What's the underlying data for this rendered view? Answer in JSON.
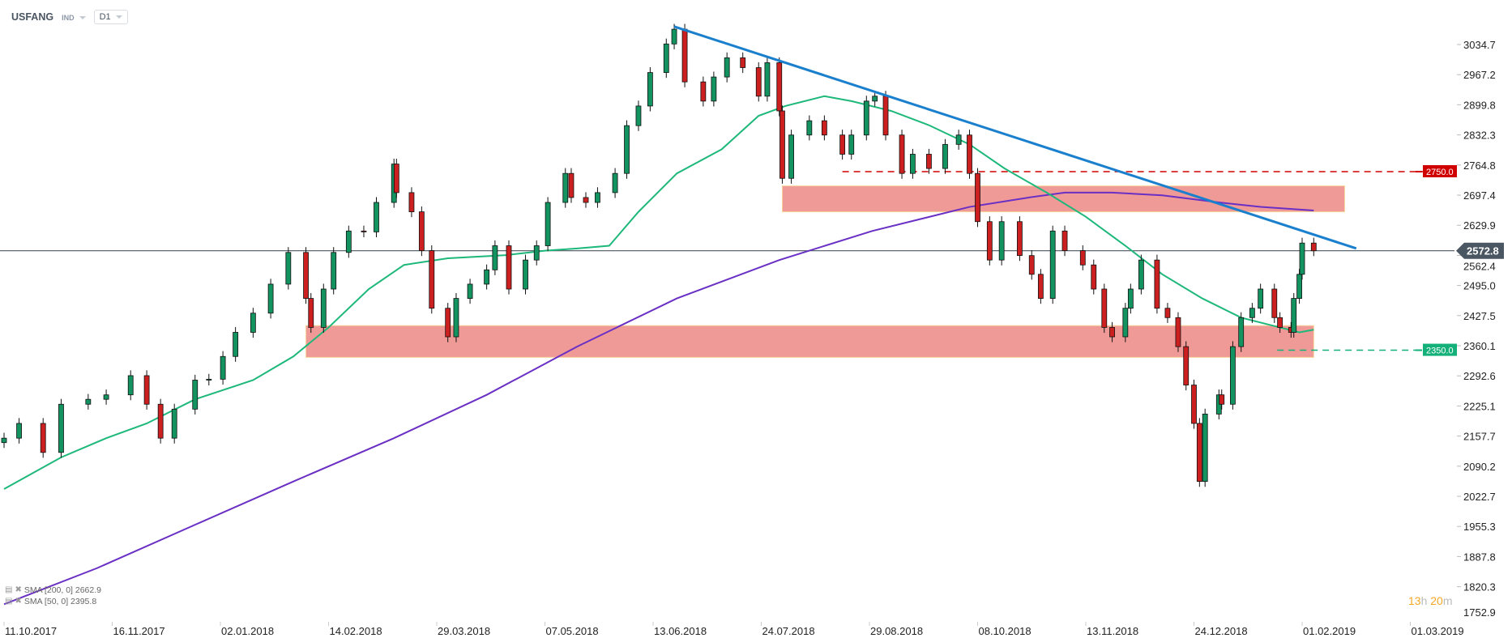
{
  "header": {
    "symbol": "USFANG",
    "type": "IND",
    "timeframe": "D1"
  },
  "legend": [
    {
      "label": "SMA [200,  0] 2662.9",
      "color": "#6a2fc4"
    },
    {
      "label": "SMA [50,  0] 2395.8",
      "color": "#1db87a"
    }
  ],
  "timer": {
    "hours": "13",
    "h": "h",
    "minutes": "20",
    "m": "m"
  },
  "colors": {
    "up": "#12935f",
    "down": "#cc1f1f",
    "sma50": "#1db87a",
    "sma200": "#6a2fc4",
    "trendline": "#1a7fcc",
    "zone": "#ef9a97",
    "price_line": "#4a5661",
    "level_red": "#d10000",
    "level_green": "#13b07a"
  },
  "chart_data": {
    "type": "candlestick",
    "title": "",
    "ylim": [
      1752.9,
      3102
    ],
    "y_ticks": [
      "3034.7",
      "2967.2",
      "2899.8",
      "2832.3",
      "2764.8",
      "2697.4",
      "2629.9",
      "2562.4",
      "2495.0",
      "2427.5",
      "2360.1",
      "2292.6",
      "2225.1",
      "2157.7",
      "2090.2",
      "2022.7",
      "1955.3",
      "1887.8",
      "1820.3",
      "1752.9"
    ],
    "x_ticks": [
      "11.10.2017",
      "16.11.2017",
      "02.01.2018",
      "14.02.2018",
      "29.03.2018",
      "07.05.2018",
      "13.06.2018",
      "24.07.2018",
      "29.08.2018",
      "08.10.2018",
      "13.11.2018",
      "24.12.2018",
      "01.02.2019",
      "01.03.2019"
    ],
    "closes": [
      [
        "2017-10-11",
        2153
      ],
      [
        "2017-10-16",
        2186
      ],
      [
        "2017-10-24",
        2121
      ],
      [
        "2017-10-30",
        2229
      ],
      [
        "2017-11-08",
        2240
      ],
      [
        "2017-11-14",
        2250
      ],
      [
        "2017-11-24",
        2293
      ],
      [
        "2017-12-01",
        2229
      ],
      [
        "2017-12-07",
        2153
      ],
      [
        "2017-12-13",
        2218
      ],
      [
        "2017-12-22",
        2283
      ],
      [
        "2017-12-28",
        2285
      ],
      [
        "2018-01-03",
        2336
      ],
      [
        "2018-01-08",
        2390
      ],
      [
        "2018-01-15",
        2433
      ],
      [
        "2018-01-22",
        2498
      ],
      [
        "2018-01-29",
        2569
      ],
      [
        "2018-02-05",
        2466
      ],
      [
        "2018-02-07",
        2401
      ],
      [
        "2018-02-12",
        2487
      ],
      [
        "2018-02-16",
        2569
      ],
      [
        "2018-02-22",
        2617
      ],
      [
        "2018-02-28",
        2615
      ],
      [
        "2018-03-05",
        2681
      ],
      [
        "2018-03-12",
        2767
      ],
      [
        "2018-03-13",
        2703
      ],
      [
        "2018-03-19",
        2660
      ],
      [
        "2018-03-23",
        2573
      ],
      [
        "2018-03-27",
        2444
      ],
      [
        "2018-04-02",
        2380
      ],
      [
        "2018-04-05",
        2466
      ],
      [
        "2018-04-10",
        2498
      ],
      [
        "2018-04-16",
        2530
      ],
      [
        "2018-04-19",
        2584
      ],
      [
        "2018-04-24",
        2487
      ],
      [
        "2018-04-30",
        2552
      ],
      [
        "2018-05-04",
        2584
      ],
      [
        "2018-05-08",
        2681
      ],
      [
        "2018-05-14",
        2746
      ],
      [
        "2018-05-16",
        2692
      ],
      [
        "2018-05-21",
        2681
      ],
      [
        "2018-05-25",
        2703
      ],
      [
        "2018-05-31",
        2746
      ],
      [
        "2018-06-04",
        2853
      ],
      [
        "2018-06-08",
        2897
      ],
      [
        "2018-06-12",
        2972
      ],
      [
        "2018-06-18",
        3036
      ],
      [
        "2018-06-21",
        3069
      ],
      [
        "2018-06-25",
        2951
      ],
      [
        "2018-07-02",
        2908
      ],
      [
        "2018-07-06",
        2962
      ],
      [
        "2018-07-11",
        3005
      ],
      [
        "2018-07-17",
        2983
      ],
      [
        "2018-07-23",
        2919
      ],
      [
        "2018-07-26",
        2994
      ],
      [
        "2018-07-30",
        2886
      ],
      [
        "2018-07-31",
        2735
      ],
      [
        "2018-08-03",
        2832
      ],
      [
        "2018-08-09",
        2864
      ],
      [
        "2018-08-14",
        2832
      ],
      [
        "2018-08-20",
        2789
      ],
      [
        "2018-08-23",
        2832
      ],
      [
        "2018-08-28",
        2908
      ],
      [
        "2018-08-31",
        2919
      ],
      [
        "2018-09-04",
        2832
      ],
      [
        "2018-09-10",
        2746
      ],
      [
        "2018-09-14",
        2789
      ],
      [
        "2018-09-20",
        2757
      ],
      [
        "2018-09-26",
        2811
      ],
      [
        "2018-10-01",
        2832
      ],
      [
        "2018-10-05",
        2746
      ],
      [
        "2018-10-08",
        2638
      ],
      [
        "2018-10-12",
        2552
      ],
      [
        "2018-10-16",
        2638
      ],
      [
        "2018-10-22",
        2562
      ],
      [
        "2018-10-26",
        2520
      ],
      [
        "2018-10-29",
        2466
      ],
      [
        "2018-11-02",
        2617
      ],
      [
        "2018-11-06",
        2573
      ],
      [
        "2018-11-12",
        2541
      ],
      [
        "2018-11-16",
        2487
      ],
      [
        "2018-11-20",
        2401
      ],
      [
        "2018-11-23",
        2380
      ],
      [
        "2018-11-28",
        2444
      ],
      [
        "2018-11-30",
        2487
      ],
      [
        "2018-12-04",
        2552
      ],
      [
        "2018-12-10",
        2444
      ],
      [
        "2018-12-14",
        2423
      ],
      [
        "2018-12-18",
        2358
      ],
      [
        "2018-12-21",
        2272
      ],
      [
        "2018-12-24",
        2186
      ],
      [
        "2018-12-26",
        2056
      ],
      [
        "2018-12-28",
        2207
      ],
      [
        "2019-01-02",
        2250
      ],
      [
        "2019-01-03",
        2229
      ],
      [
        "2019-01-07",
        2358
      ],
      [
        "2019-01-10",
        2423
      ],
      [
        "2019-01-14",
        2444
      ],
      [
        "2019-01-17",
        2487
      ],
      [
        "2019-01-22",
        2423
      ],
      [
        "2019-01-24",
        2401
      ],
      [
        "2019-01-28",
        2390
      ],
      [
        "2019-01-29",
        2466
      ],
      [
        "2019-01-31",
        2520
      ],
      [
        "2019-02-01",
        2590
      ],
      [
        "2019-02-04",
        2572.8
      ]
    ],
    "sma50": [
      [
        "2017-10-11",
        2039
      ],
      [
        "2017-10-30",
        2110
      ],
      [
        "2017-11-14",
        2153
      ],
      [
        "2017-12-01",
        2186
      ],
      [
        "2017-12-22",
        2240
      ],
      [
        "2018-01-15",
        2283
      ],
      [
        "2018-01-31",
        2336
      ],
      [
        "2018-02-14",
        2401
      ],
      [
        "2018-03-02",
        2487
      ],
      [
        "2018-03-16",
        2541
      ],
      [
        "2018-04-02",
        2556
      ],
      [
        "2018-04-23",
        2563
      ],
      [
        "2018-05-07",
        2573
      ],
      [
        "2018-05-18",
        2578
      ],
      [
        "2018-05-29",
        2584
      ],
      [
        "2018-06-08",
        2660
      ],
      [
        "2018-06-22",
        2746
      ],
      [
        "2018-07-09",
        2800
      ],
      [
        "2018-07-23",
        2875
      ],
      [
        "2018-08-01",
        2897
      ],
      [
        "2018-08-14",
        2919
      ],
      [
        "2018-08-23",
        2908
      ],
      [
        "2018-09-06",
        2886
      ],
      [
        "2018-09-20",
        2854
      ],
      [
        "2018-10-05",
        2811
      ],
      [
        "2018-10-17",
        2757
      ],
      [
        "2018-10-31",
        2703
      ],
      [
        "2018-11-13",
        2649
      ],
      [
        "2018-11-28",
        2584
      ],
      [
        "2018-12-12",
        2520
      ],
      [
        "2018-12-27",
        2466
      ],
      [
        "2019-01-10",
        2423
      ],
      [
        "2019-01-24",
        2401
      ],
      [
        "2019-01-31",
        2390
      ],
      [
        "2019-02-04",
        2395.8
      ]
    ],
    "sma200": [
      [
        "2017-10-11",
        1781
      ],
      [
        "2017-11-11",
        1862
      ],
      [
        "2017-12-22",
        1959
      ],
      [
        "2018-01-31",
        2056
      ],
      [
        "2018-03-12",
        2153
      ],
      [
        "2018-04-16",
        2250
      ],
      [
        "2018-05-18",
        2358
      ],
      [
        "2018-06-22",
        2466
      ],
      [
        "2018-07-30",
        2552
      ],
      [
        "2018-08-30",
        2617
      ],
      [
        "2018-10-05",
        2671
      ],
      [
        "2018-10-25",
        2692
      ],
      [
        "2018-11-06",
        2703
      ],
      [
        "2018-11-23",
        2703
      ],
      [
        "2018-12-12",
        2697
      ],
      [
        "2019-01-02",
        2681
      ],
      [
        "2019-01-17",
        2671
      ],
      [
        "2019-02-04",
        2662.9
      ]
    ],
    "trendline": {
      "start": [
        "2018-06-21",
        3075
      ],
      "end": [
        "2019-02-15",
        2578
      ]
    },
    "zones": [
      {
        "from_date": "2018-07-31",
        "to_date": "2019-02-12",
        "low": 2660,
        "high": 2718
      },
      {
        "from_date": "2018-02-05",
        "to_date": "2019-02-04",
        "low": 2334,
        "high": 2405
      }
    ],
    "levels": [
      {
        "value": "2750.0",
        "from_date": "2018-08-20",
        "color": "#d10000"
      },
      {
        "value": "2350.0",
        "from_date": "2019-01-23",
        "color": "#13b07a"
      }
    ],
    "last_price": "2572.8"
  }
}
